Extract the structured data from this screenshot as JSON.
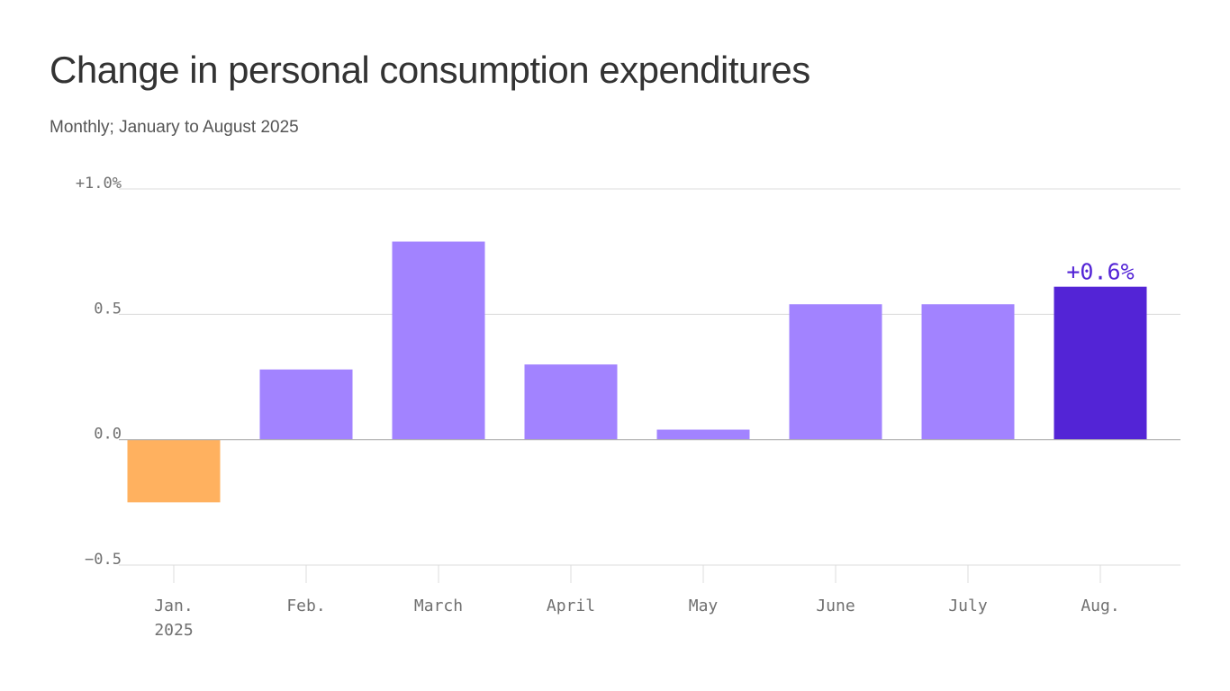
{
  "chart_data": {
    "type": "bar",
    "title": "Change in personal consumption expenditures",
    "subtitle": "Monthly; January to August 2025",
    "categories": [
      "Jan.",
      "Feb.",
      "March",
      "April",
      "May",
      "June",
      "July",
      "Aug."
    ],
    "category_sublabels": [
      "2025",
      "",
      "",
      "",
      "",
      "",
      "",
      ""
    ],
    "values": [
      -0.25,
      0.28,
      0.79,
      0.3,
      0.04,
      0.54,
      0.54,
      0.61
    ],
    "ylim": [
      -0.5,
      1.0
    ],
    "yticks": [
      1.0,
      0.5,
      0.0,
      -0.5
    ],
    "ytick_labels": [
      "+1.0%",
      "0.5",
      "0.0",
      "−0.5"
    ],
    "highlight_index": 7,
    "highlight_label": "+0.6%",
    "xlabel": "",
    "ylabel": "",
    "grid": true,
    "colors": {
      "negative": "#ffb15f",
      "positive": "#a283ff",
      "highlight": "#5324d6",
      "grid": "#dcdcdc",
      "zero_line": "#b0b0b0",
      "tick_text": "#707070",
      "annotation": "#5324d6"
    }
  }
}
